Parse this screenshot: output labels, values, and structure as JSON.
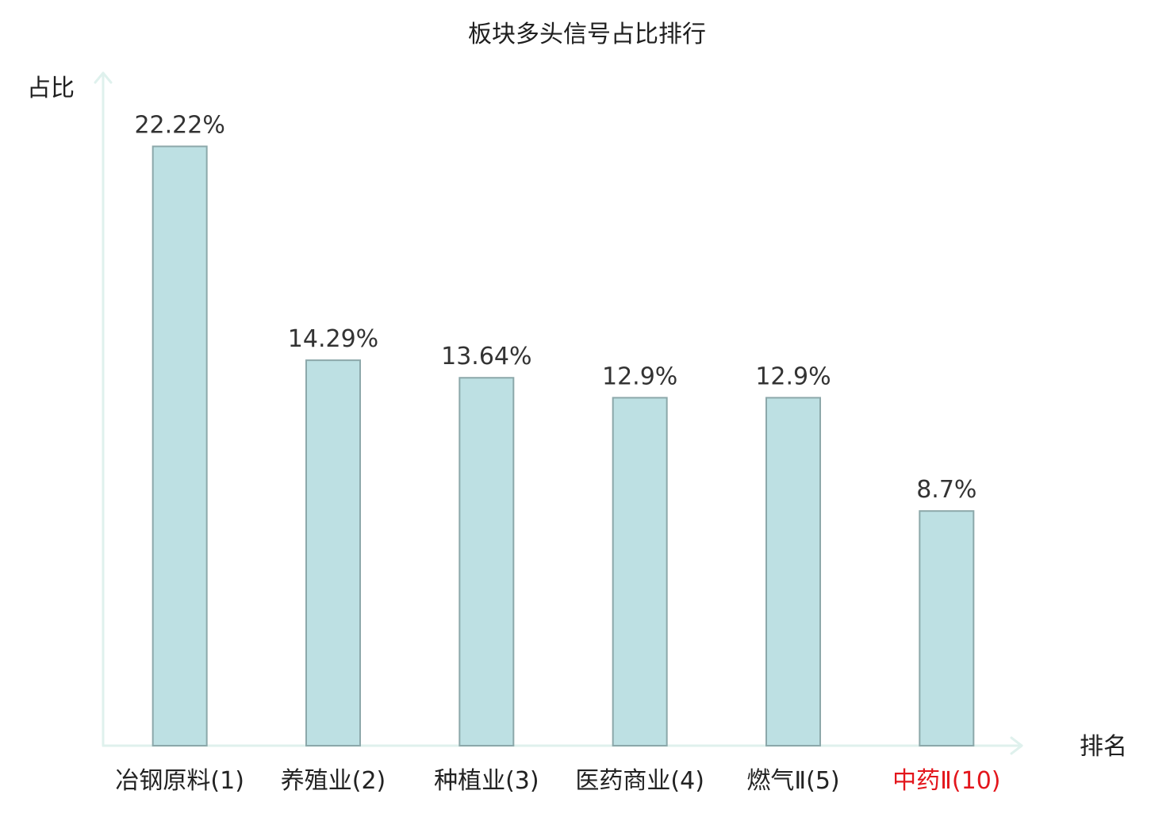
{
  "chart_data": {
    "type": "bar",
    "title": "板块多头信号占比排行",
    "xlabel": "排名",
    "ylabel": "占比",
    "categories": [
      "冶钢原料(1)",
      "养殖业(2)",
      "种植业(3)",
      "医药商业(4)",
      "燃气Ⅱ(5)",
      "中药Ⅱ(10)"
    ],
    "values": [
      22.22,
      14.29,
      13.64,
      12.9,
      12.9,
      8.7
    ],
    "data_labels": [
      "22.22%",
      "14.29%",
      "13.64%",
      "12.9%",
      "12.9%",
      "8.7%"
    ],
    "ylim": [
      0,
      25
    ],
    "grid": false,
    "colors": {
      "bar_fill": "#bde0e3",
      "bar_stroke": "#8ca8aa",
      "axis": "#dff1ed",
      "data_label_text": "#333333",
      "category_text": [
        "#222222",
        "#222222",
        "#222222",
        "#222222",
        "#222222",
        "#e3161c"
      ]
    }
  }
}
